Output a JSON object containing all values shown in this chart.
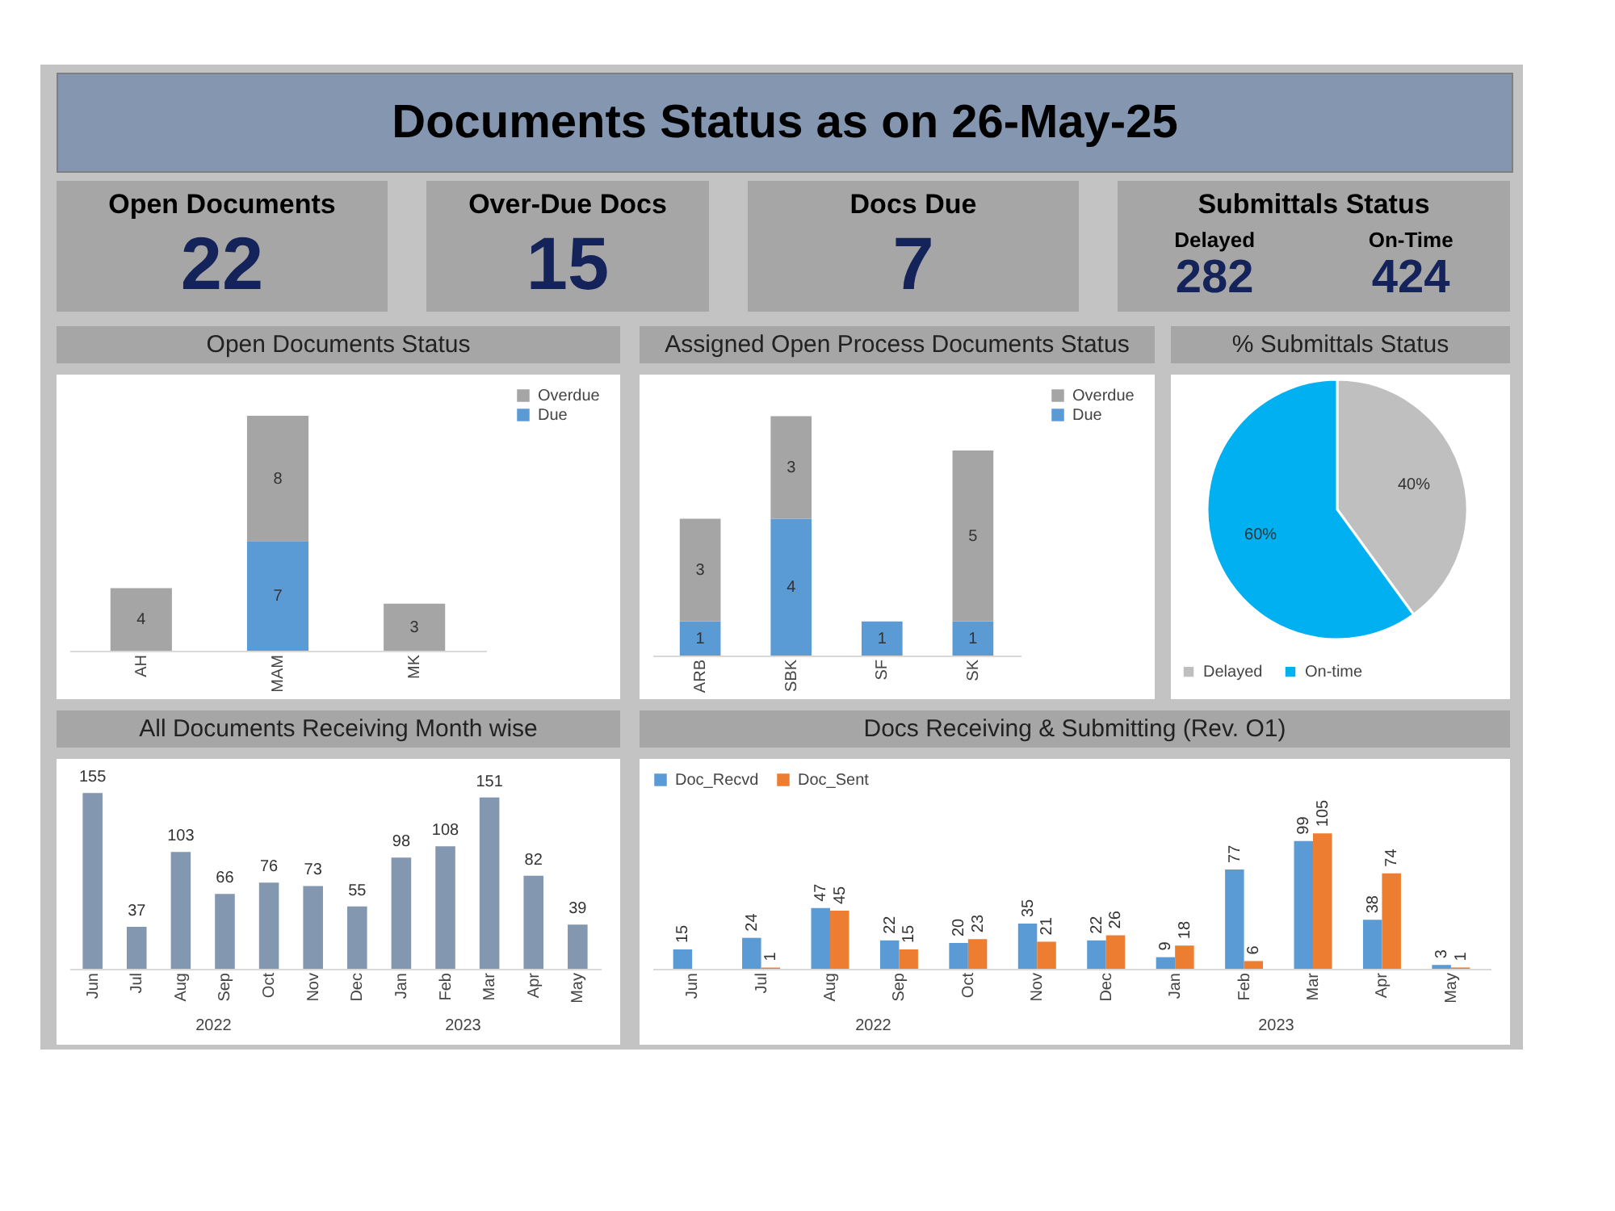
{
  "chart_data": [
    {
      "type": "other",
      "title": "Documents Status as on 26-May-25"
    },
    {
      "type": "other",
      "title": "Open Documents",
      "annotations": [
        "22"
      ]
    },
    {
      "type": "other",
      "title": "Over-Due Docs",
      "annotations": [
        "15"
      ]
    },
    {
      "type": "other",
      "title": "Docs Due",
      "annotations": [
        "7"
      ]
    },
    {
      "type": "other",
      "title": "Submittals Status",
      "annotations": [
        "Delayed",
        "282",
        "On-Time",
        "424"
      ]
    },
    {
      "type": "bar",
      "title": "Open Documents Status",
      "stacked": true,
      "categories": [
        "AH",
        "MAM",
        "MK"
      ],
      "series": [
        {
          "name": "Due",
          "color": "#5b9bd5",
          "values": [
            null,
            7,
            null
          ]
        },
        {
          "name": "Overdue",
          "color": "#a5a5a5",
          "values": [
            4,
            8,
            3
          ]
        }
      ],
      "data_labels": true,
      "legend": "right",
      "tick_labels": "x"
    },
    {
      "type": "bar",
      "title": "Assigned Open Process Documents Status",
      "stacked": true,
      "categories": [
        "ARB",
        "SBK",
        "SF",
        "SK"
      ],
      "series": [
        {
          "name": "Due",
          "color": "#5b9bd5",
          "values": [
            1,
            4,
            1,
            1
          ]
        },
        {
          "name": "Overdue",
          "color": "#a5a5a5",
          "values": [
            3,
            3,
            null,
            5
          ]
        }
      ],
      "data_labels": true,
      "legend": "right",
      "tick_labels": "x"
    },
    {
      "type": "pie",
      "title": "% Submittals Status",
      "categories": [
        "Delayed",
        "On-time"
      ],
      "values": [
        40,
        60
      ],
      "colors": [
        "#bfbfbf",
        "#00b0f0"
      ],
      "value_labels": [
        "40%",
        "60%"
      ],
      "legend": "bottom"
    },
    {
      "type": "bar",
      "title": "All Documents Receiving Month wise",
      "categories": [
        "Jun",
        "Jul",
        "Aug",
        "Sep",
        "Oct",
        "Nov",
        "Dec",
        "Jan",
        "Feb",
        "Mar",
        "Apr",
        "May"
      ],
      "values": [
        155,
        37,
        103,
        66,
        76,
        73,
        55,
        98,
        108,
        151,
        82,
        39
      ],
      "color": "#8497b0",
      "data_labels": true,
      "tick_labels": "x",
      "annotations": [
        "2022",
        "2023"
      ]
    },
    {
      "type": "bar",
      "title": "Docs Receiving & Submitting (Rev. O1)",
      "categories": [
        "Jun",
        "Jul",
        "Aug",
        "Sep",
        "Oct",
        "Nov",
        "Dec",
        "Jan",
        "Feb",
        "Mar",
        "Apr",
        "May"
      ],
      "series": [
        {
          "name": "Doc_Recvd",
          "color": "#5b9bd5",
          "values": [
            15,
            24,
            47,
            22,
            20,
            35,
            22,
            9,
            77,
            99,
            38,
            3
          ]
        },
        {
          "name": "Doc_Sent",
          "color": "#ed7d31",
          "values": [
            null,
            1,
            45,
            15,
            23,
            21,
            26,
            18,
            6,
            105,
            74,
            1
          ]
        }
      ],
      "data_labels": true,
      "legend": "top",
      "tick_labels": "x",
      "annotations": [
        "2022",
        "2023"
      ]
    }
  ]
}
